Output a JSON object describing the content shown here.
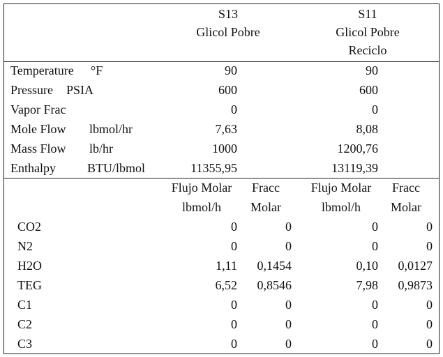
{
  "header": {
    "s13": [
      "S13",
      "Glicol Pobre"
    ],
    "s11": [
      "S11",
      "Glicol Pobre",
      "Reciclo"
    ]
  },
  "properties": [
    {
      "label": "Temperature",
      "unit": "°F",
      "s13": "90",
      "s11": "90"
    },
    {
      "label": "Pressure",
      "unit": "PSIA",
      "s13": "600",
      "s11": "600"
    },
    {
      "label": "Vapor Frac",
      "s13": "0",
      "s11": "0"
    },
    {
      "label": "Mole Flow",
      "unit": "lbmol/hr",
      "s13": "7,63",
      "s11": "8,08"
    },
    {
      "label": "Mass Flow",
      "unit": "lb/hr",
      "s13": "1000",
      "s11": "1200,76"
    },
    {
      "label": "Enthalpy",
      "unit": "BTU/lbmol",
      "s13": "11355,95",
      "s11": "13119,39"
    }
  ],
  "component_header": [
    [
      "Flujo Molar",
      "lbmol/h"
    ],
    [
      "Fracc",
      "Molar"
    ],
    [
      "Flujo Molar",
      "lbmol/h"
    ],
    [
      "Fracc",
      "Molar"
    ]
  ],
  "components": [
    {
      "name": "CO2",
      "values": [
        "0",
        "0",
        "0",
        "0"
      ]
    },
    {
      "name": "N2",
      "values": [
        "0",
        "0",
        "0",
        "0"
      ]
    },
    {
      "name": "H2O",
      "values": [
        "1,11",
        "0,1454",
        "0,10",
        "0,0127"
      ]
    },
    {
      "name": "TEG",
      "values": [
        "6,52",
        "0,8546",
        "7,98",
        "0,9873"
      ]
    },
    {
      "name": "C1",
      "values": [
        "0",
        "0",
        "0",
        "0"
      ]
    },
    {
      "name": "C2",
      "values": [
        "0",
        "0",
        "0",
        "0"
      ]
    },
    {
      "name": "C3",
      "values": [
        "0",
        "0",
        "0",
        "0"
      ]
    }
  ]
}
